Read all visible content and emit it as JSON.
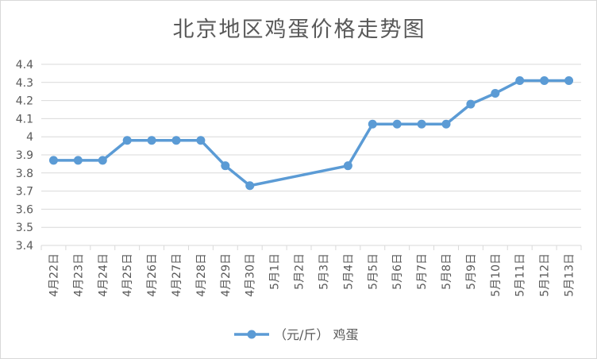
{
  "chart_data": {
    "type": "line",
    "title": "北京地区鸡蛋价格走势图",
    "categories": [
      "4月22日",
      "4月23日",
      "4月24日",
      "4月25日",
      "4月26日",
      "4月27日",
      "4月28日",
      "4月29日",
      "4月30日",
      "5月1日",
      "5月2日",
      "5月3日",
      "5月4日",
      "5月5日",
      "5月6日",
      "5月7日",
      "5月8日",
      "5月9日",
      "5月10日",
      "5月11日",
      "5月12日",
      "5月13日"
    ],
    "series": [
      {
        "name": "（元/斤） 鸡蛋",
        "color": "#5b9bd5",
        "values": [
          3.87,
          3.87,
          3.87,
          3.98,
          3.98,
          3.98,
          3.98,
          3.84,
          3.73,
          null,
          null,
          null,
          3.84,
          4.07,
          4.07,
          4.07,
          4.07,
          4.18,
          4.24,
          4.31,
          4.31,
          4.31
        ]
      }
    ],
    "ylim": [
      3.4,
      4.4
    ],
    "yticks": [
      "3.4",
      "3.5",
      "3.6",
      "3.7",
      "3.8",
      "3.9",
      "4",
      "4.1",
      "4.2",
      "4.3",
      "4.4"
    ],
    "grid": true,
    "legend_position": "bottom"
  }
}
